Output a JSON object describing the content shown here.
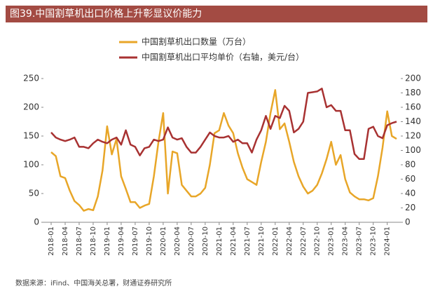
{
  "chart_data": {
    "type": "line",
    "title": "图39.中国割草机出口价格上升彰显议价能力",
    "source": "数据来源：iFind、中国海关总署，财通证券研究所",
    "categories": [
      "2018-01",
      null,
      null,
      "2018-04",
      null,
      null,
      "2018-07",
      null,
      null,
      "2018-10",
      null,
      null,
      "2019-01",
      null,
      null,
      "2019-04",
      null,
      null,
      "2019-07",
      null,
      null,
      "2019-10",
      null,
      null,
      "2020-01",
      null,
      null,
      "2020-04",
      null,
      null,
      "2020-07",
      null,
      null,
      "2020-10",
      null,
      null,
      "2021-01",
      null,
      null,
      "2021-04",
      null,
      null,
      "2021-07",
      null,
      null,
      "2021-10",
      null,
      null,
      "2022-01",
      null,
      null,
      "2022-04",
      null,
      null,
      "2022-07",
      null,
      null,
      "2022-10",
      null,
      null,
      "2023-01",
      null,
      null,
      "2023-04",
      null,
      null,
      "2023-07",
      null,
      null,
      "2023-10",
      null,
      null,
      "2024-01",
      null,
      null
    ],
    "series": [
      {
        "name": "中国割草机出口数量（万台）",
        "color": "#e8a628",
        "values": [
          122,
          115,
          80,
          77,
          55,
          37,
          30,
          20,
          23,
          21,
          45,
          90,
          167,
          118,
          145,
          80,
          58,
          35,
          35,
          25,
          29,
          32,
          80,
          140,
          190,
          50,
          123,
          120,
          65,
          55,
          45,
          45,
          50,
          60,
          100,
          155,
          160,
          190,
          168,
          155,
          120,
          95,
          75,
          70,
          65,
          105,
          140,
          190,
          230,
          162,
          172,
          140,
          105,
          80,
          62,
          50,
          55,
          65,
          85,
          110,
          140,
          100,
          117,
          75,
          52,
          45,
          40,
          40,
          38,
          42,
          80,
          130,
          193,
          150,
          145
        ]
      },
      {
        "name": "中国割草机出口平均单价（右轴，美元/台）",
        "color": "#a83232",
        "axis": "y2",
        "values": [
          125,
          118,
          115,
          113,
          115,
          118,
          105,
          105,
          103,
          110,
          115,
          112,
          110,
          115,
          118,
          108,
          128,
          108,
          105,
          93,
          103,
          105,
          115,
          113,
          115,
          132,
          118,
          115,
          117,
          105,
          97,
          97,
          105,
          115,
          125,
          120,
          118,
          118,
          120,
          112,
          115,
          110,
          110,
          97,
          115,
          128,
          148,
          130,
          148,
          145,
          162,
          155,
          125,
          130,
          140,
          180,
          181,
          182,
          186,
          160,
          163,
          155,
          155,
          128,
          128,
          95,
          88,
          88,
          130,
          133,
          120,
          117,
          135,
          138,
          140
        ]
      }
    ],
    "ylim": [
      0,
      250
    ],
    "yticks": [
      0,
      50,
      100,
      150,
      200,
      250
    ],
    "y2lim": [
      0,
      200
    ],
    "y2ticks": [
      0,
      20,
      40,
      60,
      80,
      100,
      120,
      140,
      160,
      180,
      200
    ]
  }
}
